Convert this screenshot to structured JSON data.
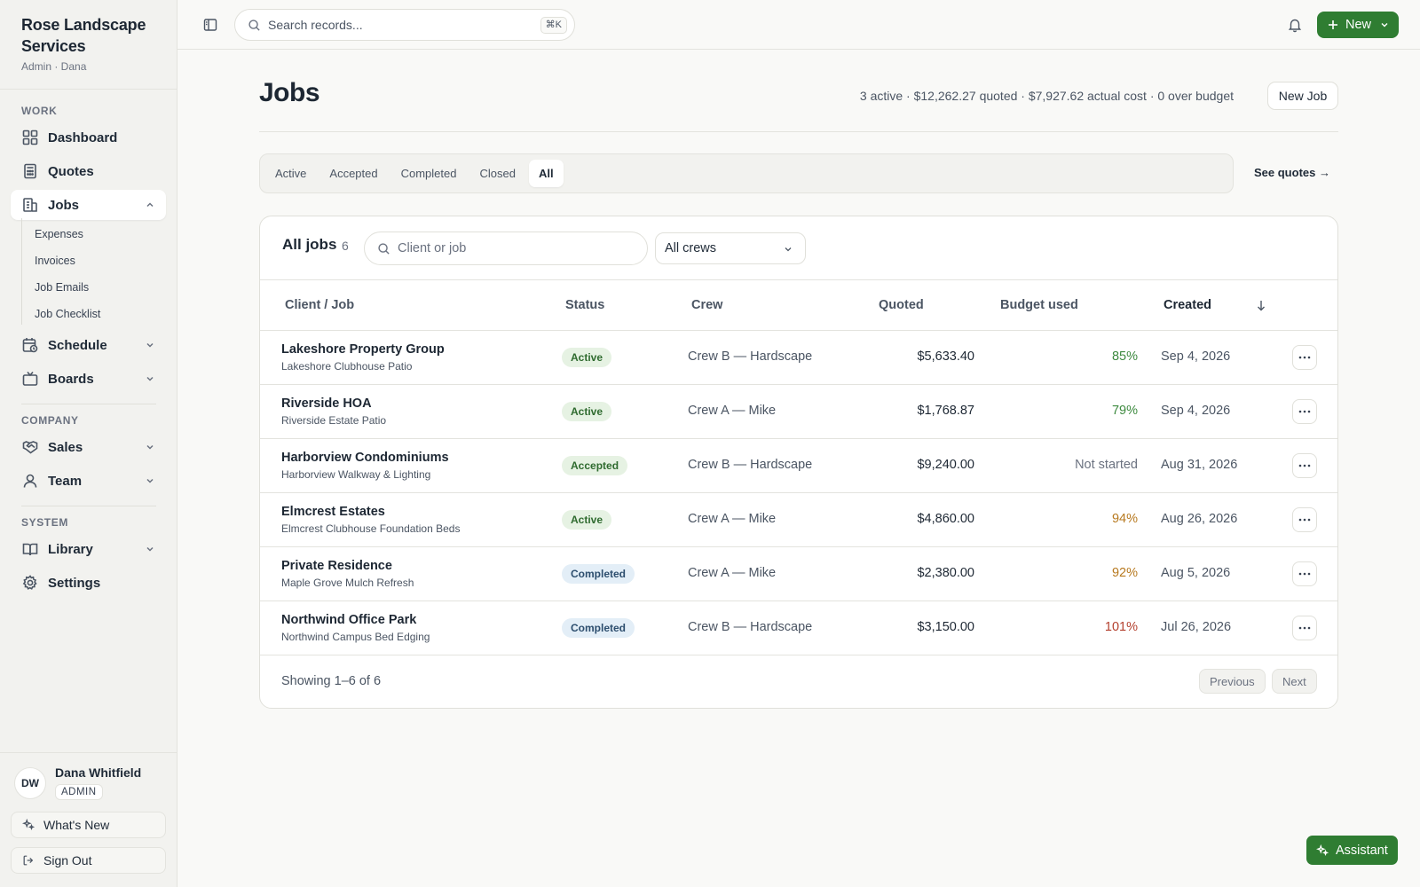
{
  "brand": {
    "name": "Rose Landscape Services",
    "sub": "Admin · Dana"
  },
  "sidebar": {
    "sections": {
      "work": "WORK",
      "company": "COMPANY",
      "system": "SYSTEM"
    },
    "items": {
      "dashboard": "Dashboard",
      "quotes": "Quotes",
      "jobs": "Jobs",
      "schedule": "Schedule",
      "boards": "Boards",
      "sales": "Sales",
      "team": "Team",
      "library": "Library",
      "settings": "Settings"
    },
    "jobs_sub": [
      "Expenses",
      "Invoices",
      "Job Emails",
      "Job Checklist"
    ]
  },
  "user": {
    "initials": "DW",
    "name": "Dana Whitfield",
    "role": "ADMIN"
  },
  "footer": {
    "whats_new": "What's New",
    "sign_out": "Sign Out"
  },
  "topbar": {
    "search_placeholder": "Search records...",
    "shortcut": "⌘K",
    "new_label": "New"
  },
  "page": {
    "title": "Jobs",
    "summary": "3 active · $12,262.27 quoted · $7,927.62 actual cost · 0 over budget",
    "new_job": "New Job",
    "see_quotes": "See quotes →"
  },
  "tabs": [
    {
      "label": "Active",
      "active": false
    },
    {
      "label": "Accepted",
      "active": false
    },
    {
      "label": "Completed",
      "active": false
    },
    {
      "label": "Closed",
      "active": false
    },
    {
      "label": "All",
      "active": true
    }
  ],
  "table": {
    "title": "All jobs",
    "count": "6",
    "search_placeholder": "Client or job",
    "crew_filter": "All crews",
    "headers": {
      "client": "Client / Job",
      "status": "Status",
      "crew": "Crew",
      "quoted": "Quoted",
      "budget": "Budget used",
      "created": "Created"
    },
    "rows": [
      {
        "client": "Lakeshore Property Group",
        "job": "Lakeshore Clubhouse Patio",
        "status": "Active",
        "crew": "Crew B — Hardscape",
        "quoted": "$5,633.40",
        "budget": "85%",
        "budget_tone": "good",
        "created": "Sep 4, 2026"
      },
      {
        "client": "Riverside HOA",
        "job": "Riverside Estate Patio",
        "status": "Active",
        "crew": "Crew A — Mike",
        "quoted": "$1,768.87",
        "budget": "79%",
        "budget_tone": "good",
        "created": "Sep 4, 2026"
      },
      {
        "client": "Harborview Condominiums",
        "job": "Harborview Walkway & Lighting",
        "status": "Accepted",
        "crew": "Crew B — Hardscape",
        "quoted": "$9,240.00",
        "budget": "Not started",
        "budget_tone": "neutral",
        "created": "Aug 31, 2026"
      },
      {
        "client": "Elmcrest Estates",
        "job": "Elmcrest Clubhouse Foundation Beds",
        "status": "Active",
        "crew": "Crew A — Mike",
        "quoted": "$4,860.00",
        "budget": "94%",
        "budget_tone": "warn",
        "created": "Aug 26, 2026"
      },
      {
        "client": "Private Residence",
        "job": "Maple Grove Mulch Refresh",
        "status": "Completed",
        "crew": "Crew A — Mike",
        "quoted": "$2,380.00",
        "budget": "92%",
        "budget_tone": "warn",
        "created": "Aug 5, 2026"
      },
      {
        "client": "Northwind Office Park",
        "job": "Northwind Campus Bed Edging",
        "status": "Completed",
        "crew": "Crew B — Hardscape",
        "quoted": "$3,150.00",
        "budget": "101%",
        "budget_tone": "over",
        "created": "Jul 26, 2026"
      }
    ],
    "showing": "Showing 1–6 of 6",
    "prev": "Previous",
    "next": "Next"
  },
  "assistant": "Assistant",
  "colors": {
    "accent": "#2f7d32",
    "badge_active_bg": "#e6f2e3",
    "badge_active_fg": "#2f6b2f",
    "badge_completed_bg": "#e3eef7",
    "badge_completed_fg": "#2d4e6e",
    "budget_good": "#3d8a3f",
    "budget_warn": "#b7791f",
    "budget_over": "#b4412f",
    "budget_neutral": "#6b7280"
  }
}
